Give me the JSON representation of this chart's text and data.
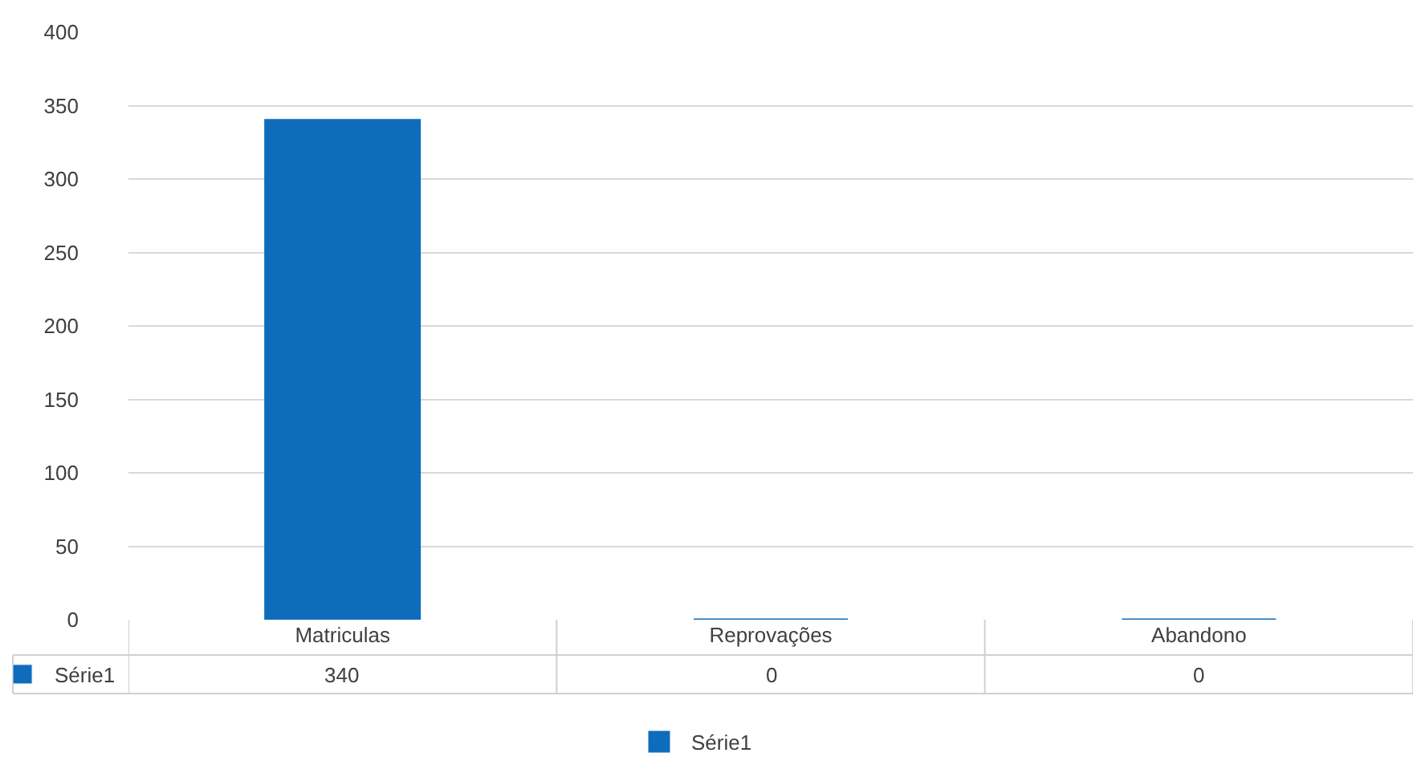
{
  "chart_data": {
    "type": "bar",
    "categories": [
      "Matriculas",
      "Reprovações",
      "Abandono"
    ],
    "series": [
      {
        "name": "Série1",
        "color": "#0f6cbd",
        "values": [
          340,
          0,
          0
        ]
      }
    ],
    "ylim": [
      0,
      400
    ],
    "yticks": [
      0,
      50,
      100,
      150,
      200,
      250,
      300,
      350,
      400
    ],
    "grid": "y",
    "legend": "bottom",
    "data_labels": true
  }
}
